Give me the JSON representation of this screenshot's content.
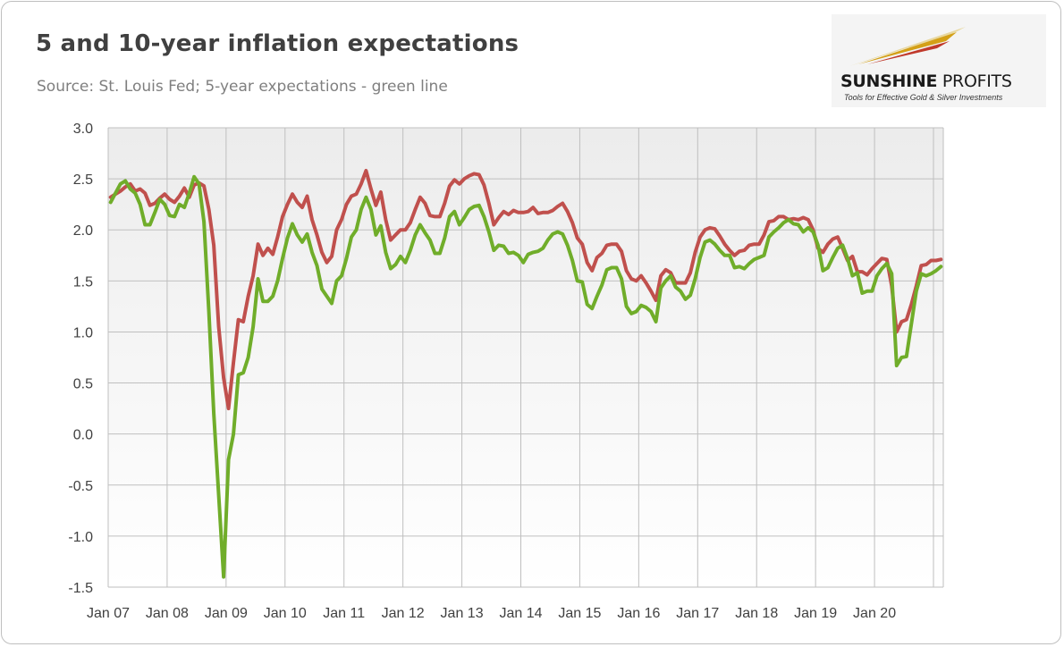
{
  "title": "5 and 10-year inflation expectations",
  "subtitle": "Source: St. Louis Fed; 5-year expectations - green line",
  "logo": {
    "word1": "SUNSHINE",
    "word2": " PROFITS",
    "tagline": "Tools for Effective Gold & Silver Investments",
    "colors": [
      "#c0392b",
      "#d4a017",
      "#e8d8a0"
    ]
  },
  "chart_data": {
    "type": "line",
    "title": "5 and 10-year inflation expectations",
    "xlabel": "",
    "ylabel": "",
    "ylim": [
      -1.5,
      3.0
    ],
    "yticks": [
      "3.0",
      "2.5",
      "2.0",
      "1.5",
      "1.0",
      "0.5",
      "0.0",
      "-0.5",
      "-1.0",
      "-1.5"
    ],
    "ytick_values": [
      3.0,
      2.5,
      2.0,
      1.5,
      1.0,
      0.5,
      0.0,
      -0.5,
      -1.0,
      -1.5
    ],
    "xticks": [
      "Jan 07",
      "Jan 08",
      "Jan 09",
      "Jan 10",
      "Jan 11",
      "Jan 12",
      "Jan 13",
      "Jan 14",
      "Jan 15",
      "Jan 16",
      "Jan 17",
      "Jan 18",
      "Jan 19",
      "Jan 20"
    ],
    "x_start": "2007-01",
    "x_end": "2020-09",
    "grid": true,
    "series": [
      {
        "color": "#c0504d",
        "values": [
          2.32,
          2.35,
          2.38,
          2.42,
          2.45,
          2.38,
          2.4,
          2.36,
          2.24,
          2.26,
          2.31,
          2.35,
          2.3,
          2.27,
          2.33,
          2.41,
          2.32,
          2.44,
          2.46,
          2.43,
          2.2,
          1.85,
          1.05,
          0.55,
          0.25,
          0.7,
          1.12,
          1.1,
          1.35,
          1.55,
          1.86,
          1.75,
          1.82,
          1.76,
          1.93,
          2.13,
          2.25,
          2.35,
          2.27,
          2.22,
          2.33,
          2.1,
          1.95,
          1.78,
          1.68,
          1.74,
          2.0,
          2.1,
          2.25,
          2.33,
          2.35,
          2.45,
          2.58,
          2.4,
          2.24,
          2.37,
          2.1,
          1.9,
          1.95,
          2.0,
          2.0,
          2.07,
          2.2,
          2.32,
          2.26,
          2.14,
          2.13,
          2.13,
          2.26,
          2.43,
          2.49,
          2.45,
          2.5,
          2.53,
          2.55,
          2.54,
          2.44,
          2.26,
          2.05,
          2.12,
          2.18,
          2.15,
          2.19,
          2.17,
          2.17,
          2.18,
          2.22,
          2.16,
          2.17,
          2.17,
          2.19,
          2.23,
          2.26,
          2.18,
          2.07,
          1.92,
          1.86,
          1.68,
          1.6,
          1.73,
          1.77,
          1.85,
          1.86,
          1.86,
          1.79,
          1.6,
          1.52,
          1.5,
          1.55,
          1.48,
          1.4,
          1.31,
          1.55,
          1.61,
          1.58,
          1.48,
          1.48,
          1.48,
          1.58,
          1.78,
          1.93,
          2.0,
          2.02,
          2.01,
          1.94,
          1.86,
          1.8,
          1.75,
          1.79,
          1.8,
          1.85,
          1.86,
          1.86,
          1.95,
          2.08,
          2.09,
          2.13,
          2.13,
          2.1,
          2.11,
          2.1,
          2.12,
          2.1,
          2.0,
          1.82,
          1.78,
          1.86,
          1.91,
          1.93,
          1.82,
          1.7,
          1.74,
          1.59,
          1.59,
          1.56,
          1.62,
          1.67,
          1.72,
          1.71,
          1.45,
          1.0,
          1.1,
          1.12,
          1.27,
          1.45,
          1.65,
          1.66,
          1.7,
          1.7,
          1.71
        ]
      },
      {
        "color": "#70ad2a",
        "values": [
          2.27,
          2.36,
          2.45,
          2.48,
          2.4,
          2.36,
          2.25,
          2.05,
          2.05,
          2.17,
          2.3,
          2.25,
          2.14,
          2.13,
          2.25,
          2.22,
          2.36,
          2.52,
          2.45,
          2.08,
          1.2,
          0.2,
          -0.6,
          -1.4,
          -0.25,
          0.0,
          0.58,
          0.6,
          0.75,
          1.05,
          1.52,
          1.3,
          1.3,
          1.35,
          1.5,
          1.72,
          1.92,
          2.06,
          1.95,
          1.88,
          1.96,
          1.78,
          1.65,
          1.42,
          1.35,
          1.28,
          1.5,
          1.55,
          1.72,
          1.93,
          2.0,
          2.2,
          2.32,
          2.2,
          1.95,
          2.04,
          1.78,
          1.62,
          1.66,
          1.74,
          1.68,
          1.8,
          1.95,
          2.05,
          1.97,
          1.9,
          1.77,
          1.77,
          1.92,
          2.13,
          2.18,
          2.05,
          2.12,
          2.2,
          2.23,
          2.24,
          2.13,
          1.98,
          1.8,
          1.85,
          1.84,
          1.77,
          1.78,
          1.75,
          1.68,
          1.76,
          1.78,
          1.79,
          1.82,
          1.9,
          1.96,
          1.98,
          1.96,
          1.85,
          1.7,
          1.5,
          1.49,
          1.27,
          1.23,
          1.35,
          1.46,
          1.61,
          1.63,
          1.63,
          1.52,
          1.25,
          1.18,
          1.2,
          1.26,
          1.24,
          1.2,
          1.1,
          1.43,
          1.5,
          1.55,
          1.44,
          1.4,
          1.32,
          1.36,
          1.52,
          1.73,
          1.88,
          1.9,
          1.86,
          1.8,
          1.75,
          1.75,
          1.63,
          1.64,
          1.62,
          1.67,
          1.71,
          1.73,
          1.75,
          1.93,
          1.98,
          2.02,
          2.07,
          2.1,
          2.06,
          2.05,
          1.98,
          2.02,
          1.98,
          1.85,
          1.6,
          1.63,
          1.73,
          1.82,
          1.85,
          1.72,
          1.55,
          1.58,
          1.38,
          1.4,
          1.4,
          1.55,
          1.62,
          1.67,
          1.57,
          0.67,
          0.75,
          0.76,
          1.08,
          1.4,
          1.57,
          1.55,
          1.57,
          1.6,
          1.64
        ]
      }
    ]
  }
}
